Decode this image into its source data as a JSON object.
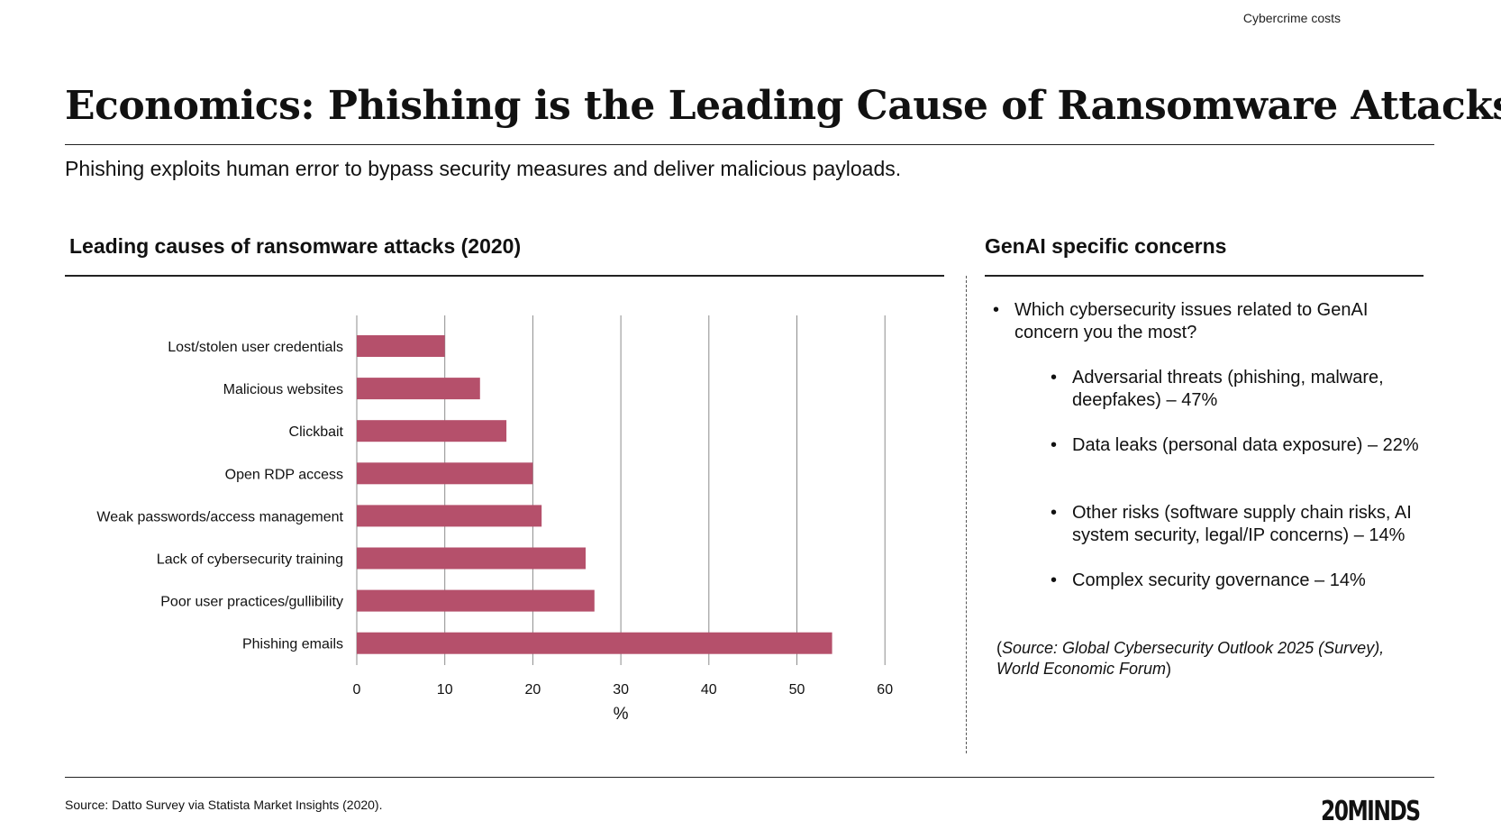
{
  "header": {
    "topic": "Cybercrime costs",
    "title": "Economics: Phishing is the Leading Cause of Ransomware Attacks",
    "subtitle": "Phishing exploits human error to bypass security measures and deliver malicious payloads."
  },
  "left_section": {
    "title": "Leading causes of ransomware attacks (2020)"
  },
  "right_section": {
    "title": "GenAI specific concerns",
    "question": "Which cybersecurity issues related to GenAI concern you the most?",
    "items": [
      "Adversarial threats (phishing, malware, deepfakes) – 47%",
      "Data leaks (personal data exposure) – 22%",
      "Other risks (software supply chain risks, AI system security, legal/IP concerns) – 14%",
      "Complex security governance – 14%"
    ],
    "source_prefix": "(",
    "source_text": "Source: Global Cybersecurity Outlook 2025 (Survey), World Economic Forum",
    "source_suffix": ")"
  },
  "footer": {
    "source": "Source: Datto Survey via Statista Market Insights (2020).",
    "logo": "20MINDS"
  },
  "colors": {
    "bar": "#b5506b",
    "grid": "#8c8c8c",
    "text": "#111111"
  },
  "chart_data": {
    "type": "bar",
    "orientation": "horizontal",
    "categories": [
      "Lost/stolen user credentials",
      "Malicious websites",
      "Clickbait",
      "Open RDP access",
      "Weak passwords/access management",
      "Lack of cybersecurity training",
      "Poor user practices/gullibility",
      "Phishing emails"
    ],
    "values": [
      10,
      14,
      17,
      20,
      21,
      26,
      27,
      54
    ],
    "xlabel": "%",
    "ylabel": "",
    "xlim": [
      0,
      60
    ],
    "ticks": [
      0,
      10,
      20,
      30,
      40,
      50,
      60
    ],
    "grid": true
  }
}
